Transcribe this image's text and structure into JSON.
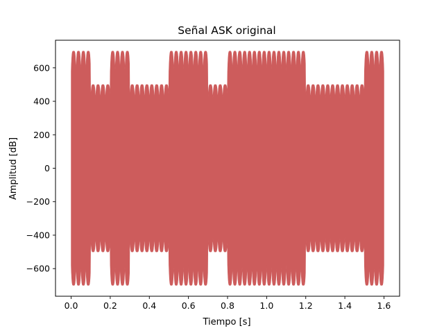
{
  "chart_data": {
    "type": "area",
    "title": "Señal ASK original",
    "xlabel": "Tiempo [s]",
    "ylabel": "Amplitud [dB]",
    "xlim": [
      -0.08,
      1.68
    ],
    "ylim": [
      -765,
      765
    ],
    "x_ticks": [
      0.0,
      0.2,
      0.4,
      0.6,
      0.8,
      1.0,
      1.2,
      1.4,
      1.6
    ],
    "x_tick_labels": [
      "0.0",
      "0.2",
      "0.4",
      "0.6",
      "0.8",
      "1.0",
      "1.2",
      "1.4",
      "1.6"
    ],
    "y_ticks": [
      600,
      400,
      200,
      0,
      -200,
      -400,
      -600
    ],
    "y_tick_labels": [
      "600",
      "400",
      "200",
      "0",
      "−200",
      "−400",
      "−600"
    ],
    "grid": false,
    "series": [
      {
        "color": "#cd5c5c",
        "envelope": {
          "bit_duration_s": 0.1,
          "bits": [
            1,
            0,
            1,
            0,
            0,
            1,
            1,
            0,
            1,
            1,
            1,
            1,
            0,
            0,
            0,
            1
          ],
          "amplitude_bit_1": 700,
          "amplitude_bit_0": 500,
          "ripple_depth_bit_1": 120,
          "ripple_depth_bit_0": 90,
          "lobes_per_bit": 4
        }
      }
    ]
  }
}
